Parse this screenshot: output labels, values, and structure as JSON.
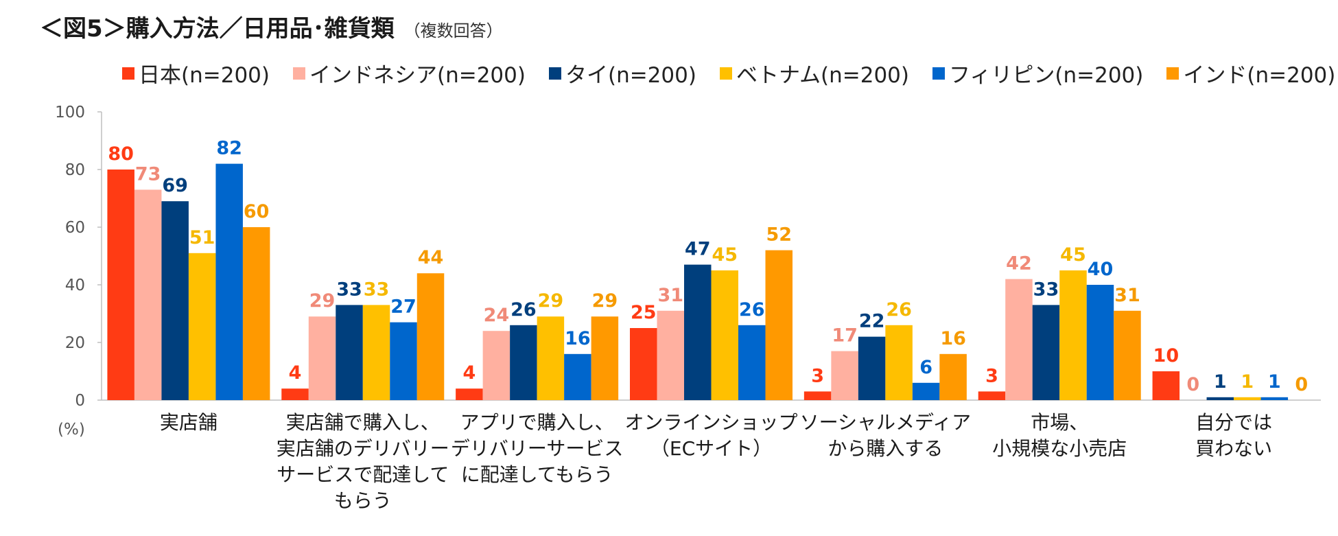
{
  "title": "＜図5＞購入方法／日用品･雑貨類",
  "subtitle": "（複数回答）",
  "chart_data": {
    "type": "bar",
    "ylabel": "(%)",
    "ylim": [
      0,
      100
    ],
    "yticks": [
      0,
      20,
      40,
      60,
      80,
      100
    ],
    "grid": false,
    "legend_position": "top",
    "categories": [
      [
        "実店舗"
      ],
      [
        "実店舗で購入し、",
        "実店舗のデリバリー",
        "サービスで配達して",
        "もらう"
      ],
      [
        "アプリで購入し、",
        "デリバリーサービス",
        "に配達してもらう"
      ],
      [
        "オンラインショップ",
        "（ECサイト）"
      ],
      [
        "ソーシャルメディア",
        "から購入する"
      ],
      [
        "市場、",
        "小規模な小売店"
      ],
      [
        "自分では",
        "買わない"
      ]
    ],
    "series": [
      {
        "name": "日本(n=200)",
        "color": "#FF3B14",
        "label_color": "#FF3B14",
        "values": [
          80,
          4,
          4,
          25,
          3,
          3,
          10
        ]
      },
      {
        "name": "インドネシア(n=200)",
        "color": "#FFB0A0",
        "label_color": "#F08A78",
        "values": [
          73,
          29,
          24,
          31,
          17,
          42,
          0
        ]
      },
      {
        "name": "タイ(n=200)",
        "color": "#003F7D",
        "label_color": "#003F7D",
        "values": [
          69,
          33,
          26,
          47,
          22,
          33,
          1
        ]
      },
      {
        "name": "ベトナム(n=200)",
        "color": "#FFC000",
        "label_color": "#F5B800",
        "values": [
          51,
          33,
          29,
          45,
          26,
          45,
          1
        ]
      },
      {
        "name": "フィリピン(n=200)",
        "color": "#0066CC",
        "label_color": "#0066CC",
        "values": [
          82,
          27,
          16,
          26,
          6,
          40,
          1
        ]
      },
      {
        "name": "インド(n=200)",
        "color": "#FF9900",
        "label_color": "#F59A00",
        "values": [
          60,
          44,
          29,
          52,
          16,
          31,
          0
        ]
      }
    ]
  }
}
